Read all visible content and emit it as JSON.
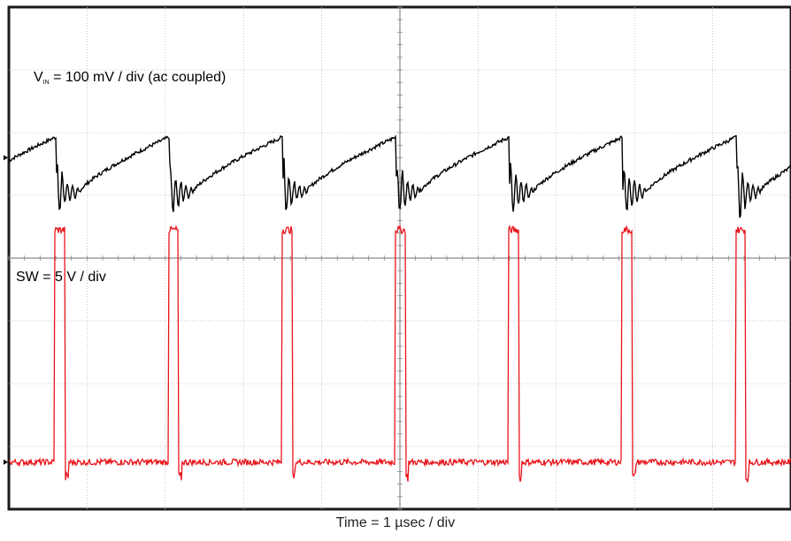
{
  "chart_data": {
    "type": "line",
    "xlabel": "Time = 1 µsec / div",
    "grid": true,
    "divisions": {
      "x": 10,
      "y": 8
    },
    "period_div": 1.45,
    "series": [
      {
        "label_main": "V",
        "label_sub": "IN",
        "label_rest": " = 100 mV / div (ac coupled)",
        "color": "#000000",
        "units": "mV",
        "scale_per_div": 100,
        "ground_div": 5.6,
        "waveform": {
          "low": -55,
          "high": 33,
          "ring_amplitude": 60,
          "ring_duration_div": 0.3
        }
      },
      {
        "label": "SW = 5 V / div",
        "color": "#e8141a",
        "units": "V",
        "scale_per_div": 5,
        "ground_div": 0.75,
        "waveform": {
          "low": 0,
          "high": 18.5,
          "pulse_width_div": 0.12,
          "first_edge_div": 0.6
        }
      }
    ]
  }
}
